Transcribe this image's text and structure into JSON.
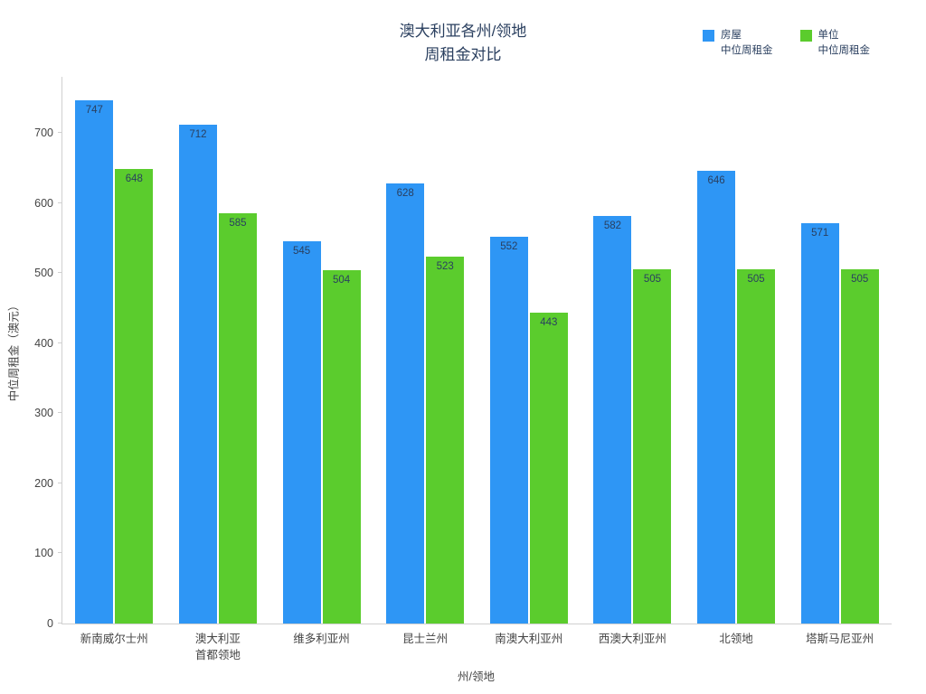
{
  "chart": {
    "title": "澳大利亚各州/领地\n周租金对比",
    "ylabel": "中位周租金（澳元）",
    "xlabel": "州/领地",
    "legend": [
      {
        "label": "房屋\n中位周租金",
        "color": "#2E96F5"
      },
      {
        "label": "单位\n中位周租金",
        "color": "#5BCC2D"
      }
    ]
  },
  "chart_data": {
    "type": "bar",
    "categories": [
      "新南威尔士州",
      "澳大利亚\n首都领地",
      "维多利亚州",
      "昆士兰州",
      "南澳大利亚州",
      "西澳大利亚州",
      "北领地",
      "塔斯马尼亚州"
    ],
    "series": [
      {
        "name": "房屋 中位周租金",
        "color": "#2E96F5",
        "values": [
          747,
          712,
          545,
          628,
          552,
          582,
          646,
          571
        ]
      },
      {
        "name": "单位 中位周租金",
        "color": "#5BCC2D",
        "values": [
          648,
          585,
          504,
          523,
          443,
          505,
          505,
          505
        ]
      }
    ],
    "title": "澳大利亚各州/领地 周租金对比",
    "ylim": [
      0,
      780
    ],
    "yticks": [
      0,
      100,
      200,
      300,
      400,
      500,
      600,
      700
    ],
    "grid": false,
    "legend_position": "top-right"
  }
}
